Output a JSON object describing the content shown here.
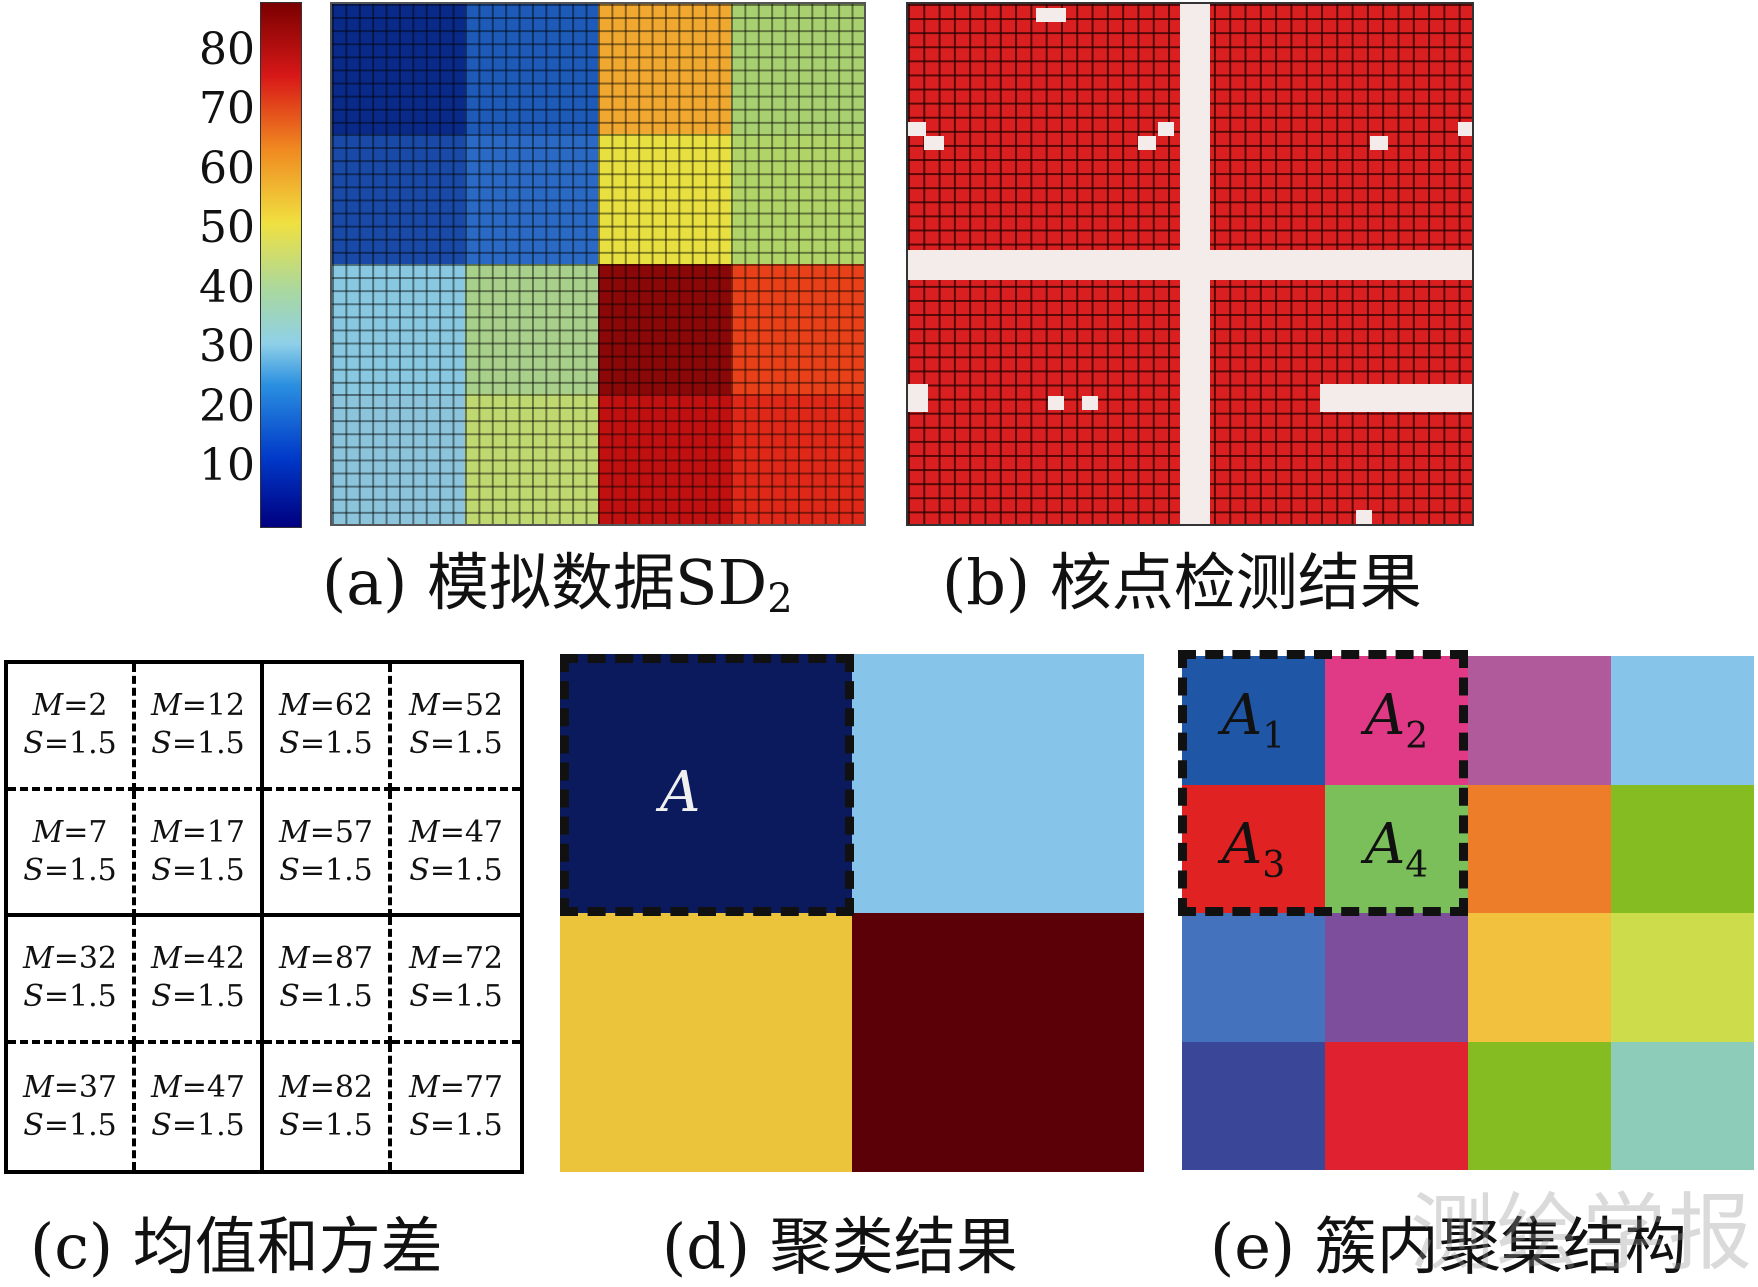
{
  "colorbar": {
    "ticks": [
      "80",
      "70",
      "60",
      "50",
      "40",
      "30",
      "20",
      "10"
    ],
    "tick_values": [
      80,
      70,
      60,
      50,
      40,
      30,
      20,
      10
    ]
  },
  "panel_a": {
    "caption_prefix": "(a) 模拟数据SD",
    "caption_sub": "2",
    "block_colors": [
      [
        "#0a2a8a",
        "#1e5ab8",
        "#f0a830",
        "#a8d070"
      ],
      [
        "#1a4aa8",
        "#2a6ac4",
        "#e8e040",
        "#b0d468"
      ],
      [
        "#88c8e0",
        "#a8d08a",
        "#8a0808",
        "#e84018"
      ],
      [
        "#8cc4dc",
        "#c0d870",
        "#c01010",
        "#e02818"
      ]
    ]
  },
  "panel_b": {
    "caption": "(b) 核点检测结果",
    "core_color": "#d91f1f",
    "noise_color": "#f3ecea"
  },
  "panel_c": {
    "caption": "(c) 均值和方差",
    "cells": [
      {
        "m": "=2",
        "s": "=1.5"
      },
      {
        "m": "=12",
        "s": "=1.5"
      },
      {
        "m": "=62",
        "s": "=1.5"
      },
      {
        "m": "=52",
        "s": "=1.5"
      },
      {
        "m": "=7",
        "s": "=1.5"
      },
      {
        "m": "=17",
        "s": "=1.5"
      },
      {
        "m": "=57",
        "s": "=1.5"
      },
      {
        "m": "=47",
        "s": "=1.5"
      },
      {
        "m": "=32",
        "s": "=1.5"
      },
      {
        "m": "=42",
        "s": "=1.5"
      },
      {
        "m": "=87",
        "s": "=1.5"
      },
      {
        "m": "=72",
        "s": "=1.5"
      },
      {
        "m": "=37",
        "s": "=1.5"
      },
      {
        "m": "=47",
        "s": "=1.5"
      },
      {
        "m": "=82",
        "s": "=1.5"
      },
      {
        "m": "=77",
        "s": "=1.5"
      }
    ],
    "m_symbol": "M",
    "s_symbol": "S"
  },
  "panel_d": {
    "caption": "(d) 聚类结果",
    "cluster_label": "A",
    "cluster_colors": [
      "#0a1a5c",
      "#86c4ea",
      "#ecc43c",
      "#5c0008"
    ]
  },
  "panel_e": {
    "caption": "(e) 簇内聚集结构",
    "label_letter": "A",
    "subclusters": [
      {
        "sub": "1",
        "color": "#1f57a6"
      },
      {
        "sub": "2",
        "color": "#e03a86"
      },
      {
        "sub": "3",
        "color": "#e02222"
      },
      {
        "sub": "4",
        "color": "#7bbf5a"
      }
    ],
    "cell_colors": [
      [
        "#1f57a6",
        "#e03a86",
        "#b05a9c",
        "#86c4ea"
      ],
      [
        "#e02222",
        "#7bbf5a",
        "#ee7d2a",
        "#84bc22"
      ],
      [
        "#4472bc",
        "#7c4e9c",
        "#f2c23e",
        "#cddc4a"
      ],
      [
        "#3a4698",
        "#e02230",
        "#84bc22",
        "#8cccb8"
      ]
    ]
  },
  "watermark": "测绘学报"
}
